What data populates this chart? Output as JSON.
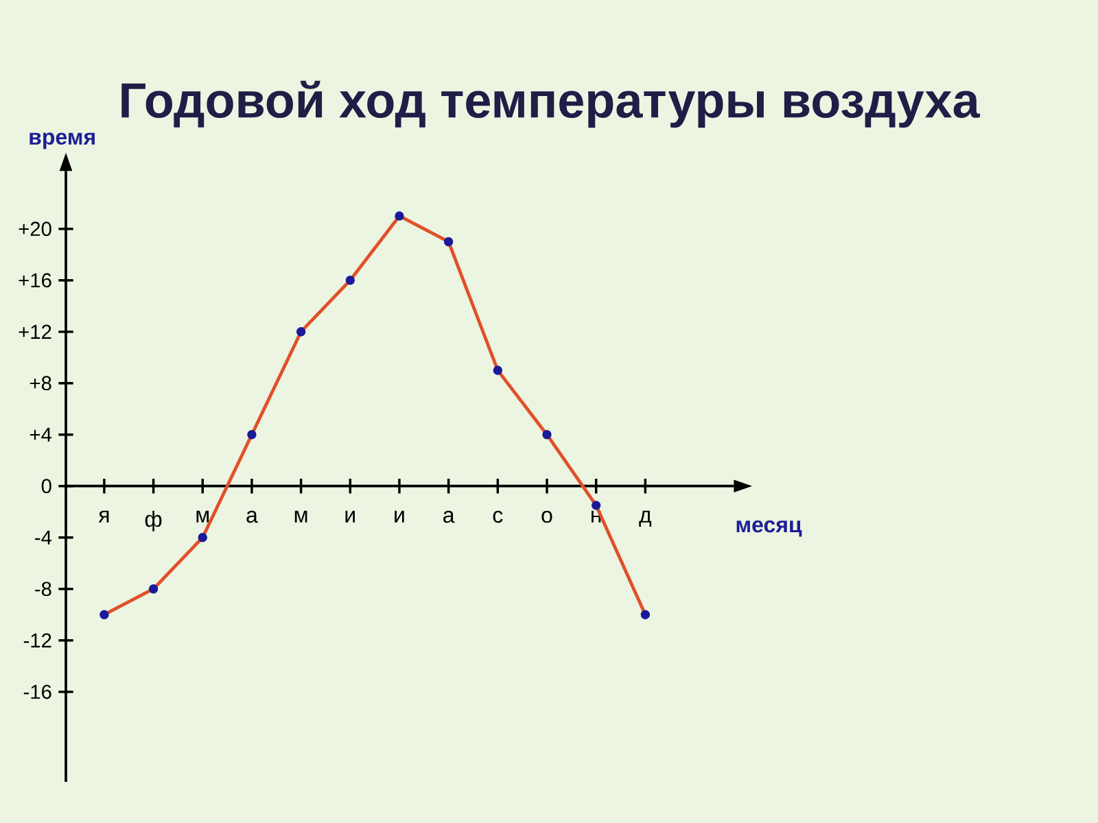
{
  "chart_data": {
    "type": "line",
    "title": "Годовой ход температуры воздуха",
    "xlabel": "месяц",
    "ylabel": "время",
    "categories": [
      "я",
      "ф",
      "м",
      "а",
      "м",
      "и",
      "и",
      "а",
      "с",
      "о",
      "н",
      "д"
    ],
    "series": [
      {
        "color": "#e0502a",
        "colors": [
          "#1a1a9a",
          "#1a1a9a",
          "#1a1a9a",
          "#1a1a9a",
          "#1a1a9a",
          "#1a1a9a",
          "#1a1a9a",
          "#1a1a9a",
          "#1a1a9a",
          "#1a1a9a",
          "#1a1a9a",
          "#1a1a9a"
        ],
        "values": [
          -10,
          -8,
          -4,
          4,
          12,
          16,
          21,
          19,
          9,
          4,
          -1.5,
          -10
        ]
      }
    ],
    "ylim": [
      -23,
      24.5
    ],
    "yticks": [
      {
        "value": 20,
        "label": "+20"
      },
      {
        "value": 16,
        "label": "+16"
      },
      {
        "value": 12,
        "label": "+12"
      },
      {
        "value": 8,
        "label": "+8"
      },
      {
        "value": 4,
        "label": "+4"
      },
      0,
      -4,
      -8,
      -12,
      -16
    ],
    "marker": "circle",
    "line_style": "solid",
    "grid": false
  }
}
